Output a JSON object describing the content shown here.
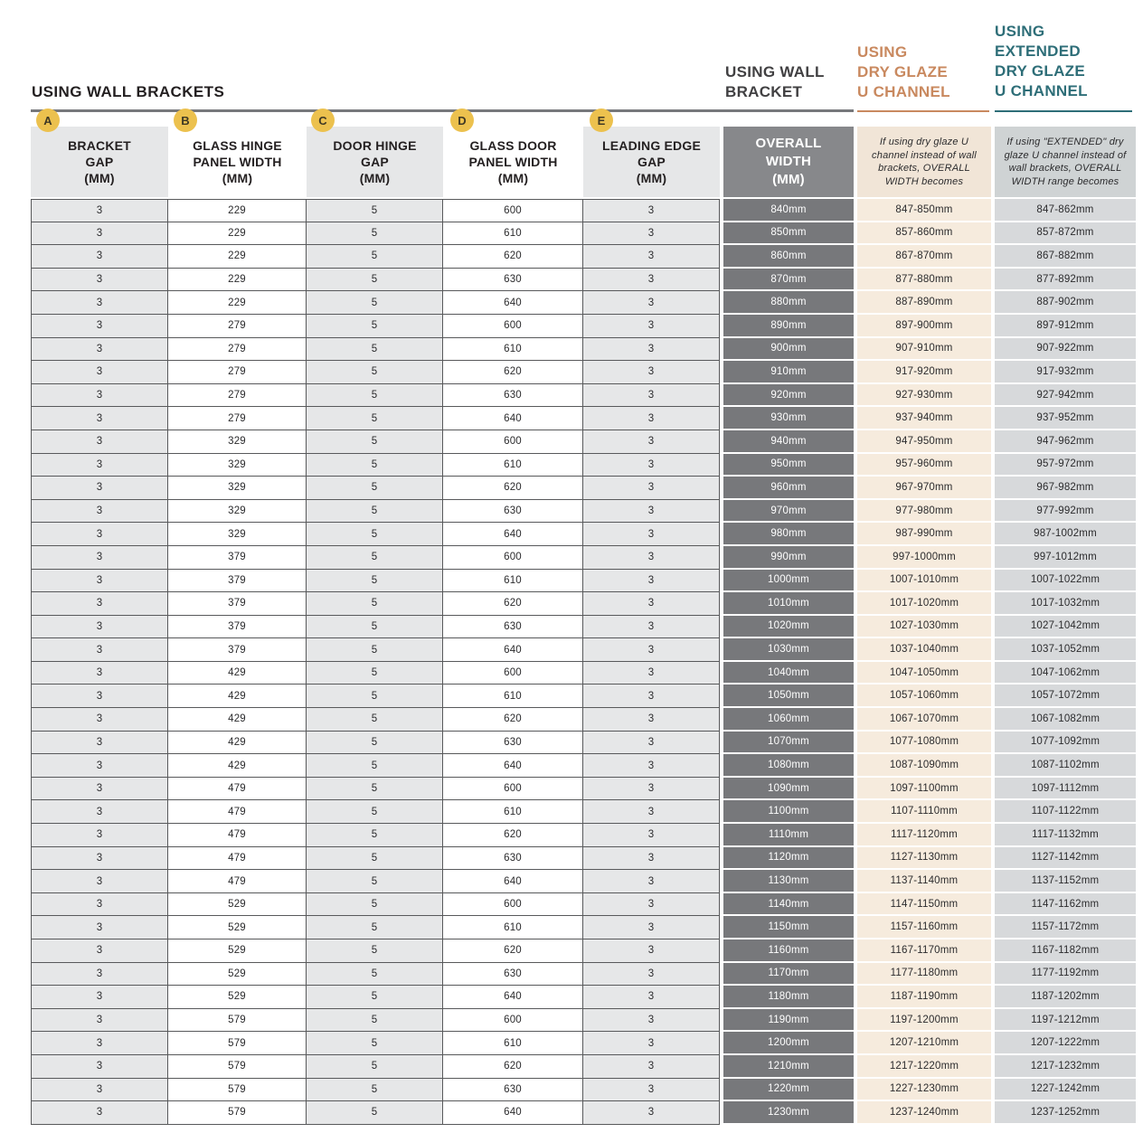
{
  "section_title": "USING WALL BRACKETS",
  "group_headers": {
    "wall_bracket": "USING WALL\nBRACKET",
    "dry_glaze": "USING\nDRY GLAZE\nU CHANNEL",
    "extended_dry_glaze": "USING\nEXTENDED\nDRY GLAZE\nU CHANNEL"
  },
  "badges": [
    "A",
    "B",
    "C",
    "D",
    "E"
  ],
  "colors": {
    "accent_orange": "#C9895F",
    "accent_teal": "#2E6E78",
    "badge_gold": "#ECC14E",
    "dark_cell": "#77787B",
    "beige_cell": "#F6EBDD",
    "light_gray_cell": "#E6E7E8",
    "muted_gray_cell": "#D7D9DB",
    "border_dark": "#58595B"
  },
  "table": {
    "column_keys": [
      "bracket_gap",
      "glass_hinge_panel_width",
      "door_hinge_gap",
      "glass_door_panel_width",
      "leading_edge_gap",
      "overall_width",
      "dry_glaze_width",
      "extended_dry_glaze_width"
    ],
    "headers": {
      "bracket_gap": "BRACKET\nGAP\n(MM)",
      "glass_hinge_panel_width": "GLASS HINGE\nPANEL WIDTH\n(MM)",
      "door_hinge_gap": "DOOR HINGE\nGAP\n(MM)",
      "glass_door_panel_width": "GLASS DOOR\nPANEL WIDTH\n(MM)",
      "leading_edge_gap": "LEADING EDGE\nGAP\n(MM)",
      "overall_width": "OVERALL\nWIDTH\n(MM)",
      "dry_glaze_note": "If using dry glaze U channel instead of wall brackets, OVERALL WIDTH becomes",
      "extended_note": "If using \"EXTENDED\" dry glaze U channel instead of wall brackets, OVERALL WIDTH range becomes"
    },
    "rows": [
      [
        "3",
        "229",
        "5",
        "600",
        "3",
        "840mm",
        "847-850mm",
        "847-862mm"
      ],
      [
        "3",
        "229",
        "5",
        "610",
        "3",
        "850mm",
        "857-860mm",
        "857-872mm"
      ],
      [
        "3",
        "229",
        "5",
        "620",
        "3",
        "860mm",
        "867-870mm",
        "867-882mm"
      ],
      [
        "3",
        "229",
        "5",
        "630",
        "3",
        "870mm",
        "877-880mm",
        "877-892mm"
      ],
      [
        "3",
        "229",
        "5",
        "640",
        "3",
        "880mm",
        "887-890mm",
        "887-902mm"
      ],
      [
        "3",
        "279",
        "5",
        "600",
        "3",
        "890mm",
        "897-900mm",
        "897-912mm"
      ],
      [
        "3",
        "279",
        "5",
        "610",
        "3",
        "900mm",
        "907-910mm",
        "907-922mm"
      ],
      [
        "3",
        "279",
        "5",
        "620",
        "3",
        "910mm",
        "917-920mm",
        "917-932mm"
      ],
      [
        "3",
        "279",
        "5",
        "630",
        "3",
        "920mm",
        "927-930mm",
        "927-942mm"
      ],
      [
        "3",
        "279",
        "5",
        "640",
        "3",
        "930mm",
        "937-940mm",
        "937-952mm"
      ],
      [
        "3",
        "329",
        "5",
        "600",
        "3",
        "940mm",
        "947-950mm",
        "947-962mm"
      ],
      [
        "3",
        "329",
        "5",
        "610",
        "3",
        "950mm",
        "957-960mm",
        "957-972mm"
      ],
      [
        "3",
        "329",
        "5",
        "620",
        "3",
        "960mm",
        "967-970mm",
        "967-982mm"
      ],
      [
        "3",
        "329",
        "5",
        "630",
        "3",
        "970mm",
        "977-980mm",
        "977-992mm"
      ],
      [
        "3",
        "329",
        "5",
        "640",
        "3",
        "980mm",
        "987-990mm",
        "987-1002mm"
      ],
      [
        "3",
        "379",
        "5",
        "600",
        "3",
        "990mm",
        "997-1000mm",
        "997-1012mm"
      ],
      [
        "3",
        "379",
        "5",
        "610",
        "3",
        "1000mm",
        "1007-1010mm",
        "1007-1022mm"
      ],
      [
        "3",
        "379",
        "5",
        "620",
        "3",
        "1010mm",
        "1017-1020mm",
        "1017-1032mm"
      ],
      [
        "3",
        "379",
        "5",
        "630",
        "3",
        "1020mm",
        "1027-1030mm",
        "1027-1042mm"
      ],
      [
        "3",
        "379",
        "5",
        "640",
        "3",
        "1030mm",
        "1037-1040mm",
        "1037-1052mm"
      ],
      [
        "3",
        "429",
        "5",
        "600",
        "3",
        "1040mm",
        "1047-1050mm",
        "1047-1062mm"
      ],
      [
        "3",
        "429",
        "5",
        "610",
        "3",
        "1050mm",
        "1057-1060mm",
        "1057-1072mm"
      ],
      [
        "3",
        "429",
        "5",
        "620",
        "3",
        "1060mm",
        "1067-1070mm",
        "1067-1082mm"
      ],
      [
        "3",
        "429",
        "5",
        "630",
        "3",
        "1070mm",
        "1077-1080mm",
        "1077-1092mm"
      ],
      [
        "3",
        "429",
        "5",
        "640",
        "3",
        "1080mm",
        "1087-1090mm",
        "1087-1102mm"
      ],
      [
        "3",
        "479",
        "5",
        "600",
        "3",
        "1090mm",
        "1097-1100mm",
        "1097-1112mm"
      ],
      [
        "3",
        "479",
        "5",
        "610",
        "3",
        "1100mm",
        "1107-1110mm",
        "1107-1122mm"
      ],
      [
        "3",
        "479",
        "5",
        "620",
        "3",
        "1110mm",
        "1117-1120mm",
        "1117-1132mm"
      ],
      [
        "3",
        "479",
        "5",
        "630",
        "3",
        "1120mm",
        "1127-1130mm",
        "1127-1142mm"
      ],
      [
        "3",
        "479",
        "5",
        "640",
        "3",
        "1130mm",
        "1137-1140mm",
        "1137-1152mm"
      ],
      [
        "3",
        "529",
        "5",
        "600",
        "3",
        "1140mm",
        "1147-1150mm",
        "1147-1162mm"
      ],
      [
        "3",
        "529",
        "5",
        "610",
        "3",
        "1150mm",
        "1157-1160mm",
        "1157-1172mm"
      ],
      [
        "3",
        "529",
        "5",
        "620",
        "3",
        "1160mm",
        "1167-1170mm",
        "1167-1182mm"
      ],
      [
        "3",
        "529",
        "5",
        "630",
        "3",
        "1170mm",
        "1177-1180mm",
        "1177-1192mm"
      ],
      [
        "3",
        "529",
        "5",
        "640",
        "3",
        "1180mm",
        "1187-1190mm",
        "1187-1202mm"
      ],
      [
        "3",
        "579",
        "5",
        "600",
        "3",
        "1190mm",
        "1197-1200mm",
        "1197-1212mm"
      ],
      [
        "3",
        "579",
        "5",
        "610",
        "3",
        "1200mm",
        "1207-1210mm",
        "1207-1222mm"
      ],
      [
        "3",
        "579",
        "5",
        "620",
        "3",
        "1210mm",
        "1217-1220mm",
        "1217-1232mm"
      ],
      [
        "3",
        "579",
        "5",
        "630",
        "3",
        "1220mm",
        "1227-1230mm",
        "1227-1242mm"
      ],
      [
        "3",
        "579",
        "5",
        "640",
        "3",
        "1230mm",
        "1237-1240mm",
        "1237-1252mm"
      ]
    ]
  }
}
